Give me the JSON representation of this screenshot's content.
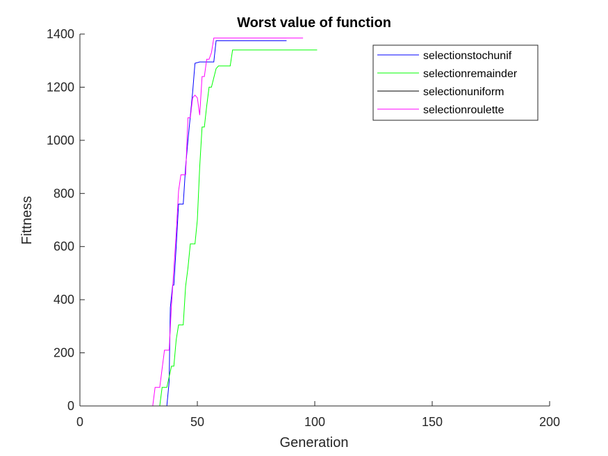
{
  "chart_data": {
    "type": "line",
    "title": "Worst value of function",
    "xlabel": "Generation",
    "ylabel": "Fittness",
    "xlim": [
      0,
      200
    ],
    "ylim": [
      0,
      1400
    ],
    "xticks": [
      0,
      50,
      100,
      150,
      200
    ],
    "yticks": [
      0,
      200,
      400,
      600,
      800,
      1000,
      1200,
      1400
    ],
    "grid": false,
    "legend_position": "top-right",
    "series": [
      {
        "name": "selectionstochunif",
        "color": "#0000ff",
        "x": [
          0,
          37,
          38,
          38.5,
          39.5,
          40,
          41,
          42,
          43,
          44,
          45,
          46,
          48,
          49,
          51,
          55,
          57,
          58,
          88
        ],
        "y": [
          0,
          0,
          90,
          370,
          455,
          455,
          600,
          760,
          760,
          760,
          900,
          1000,
          1180,
          1290,
          1295,
          1295,
          1295,
          1375,
          1375
        ]
      },
      {
        "name": "selectionremainder",
        "color": "#00ff00",
        "x": [
          0,
          34,
          35,
          37,
          39,
          40,
          41,
          42,
          43,
          44,
          45,
          46,
          47,
          48,
          49,
          50,
          51,
          52,
          53,
          54,
          55,
          56,
          58,
          59,
          60,
          61,
          64,
          65,
          70,
          101
        ],
        "y": [
          0,
          0,
          70,
          70,
          150,
          150,
          250,
          305,
          305,
          305,
          450,
          520,
          610,
          610,
          610,
          700,
          900,
          1050,
          1050,
          1130,
          1200,
          1200,
          1270,
          1280,
          1280,
          1280,
          1280,
          1340,
          1340,
          1340
        ]
      },
      {
        "name": "selectionuniform",
        "color": "#000000",
        "x": [
          0,
          200
        ],
        "y": [
          0,
          0
        ]
      },
      {
        "name": "selectionroulette",
        "color": "#ff00ff",
        "x": [
          0,
          31,
          32,
          34,
          36,
          38,
          39,
          41,
          42,
          43,
          44,
          45,
          46,
          47,
          48,
          49,
          50,
          51,
          52,
          53,
          54,
          55,
          56,
          57,
          58,
          95
        ],
        "y": [
          0,
          0,
          70,
          70,
          210,
          210,
          380,
          650,
          810,
          870,
          870,
          870,
          1085,
          1085,
          1160,
          1170,
          1160,
          1095,
          1240,
          1240,
          1305,
          1305,
          1330,
          1385,
          1385,
          1385
        ]
      }
    ]
  }
}
